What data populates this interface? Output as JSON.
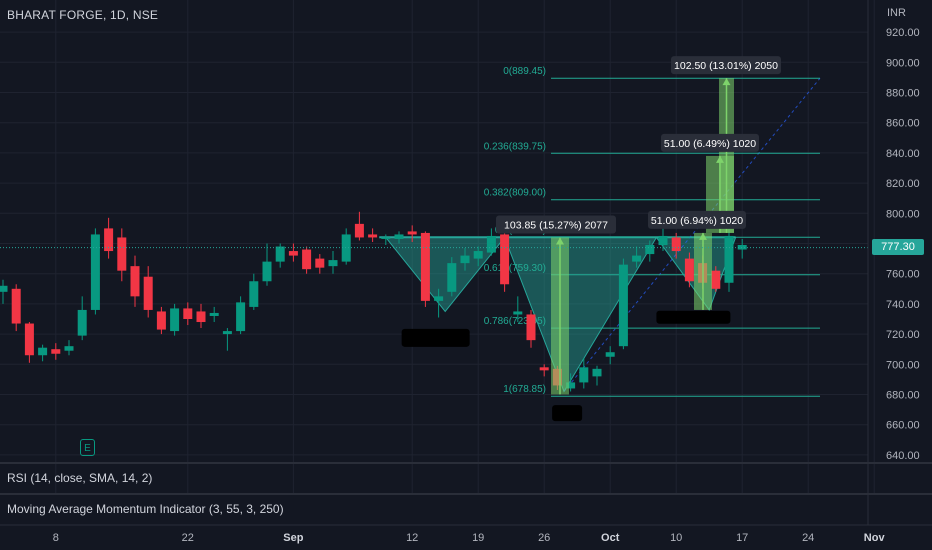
{
  "header": {
    "symbol": "BHARAT FORGE, 1D, NSE",
    "currency": "INR",
    "last_price": "777.30",
    "earnings_icon": "E"
  },
  "indicators": {
    "rsi": "RSI (14, close, SMA, 14, 2)",
    "mam": "Moving Average Momentum Indicator (3, 55, 3, 250)"
  },
  "colors": {
    "background": "#131722",
    "up": "#089981",
    "down": "#f23645",
    "fib": "#22ab94",
    "pattern_fill": "#26a69a",
    "projection": "#7ed36b",
    "label_bg": "#2a2e39"
  },
  "chart_data": {
    "type": "candlestick",
    "title": "BHARAT FORGE, 1D, NSE",
    "y_axis": {
      "unit": "INR",
      "ylim": [
        635,
        930
      ],
      "ticks": [
        "640.00",
        "660.00",
        "680.00",
        "700.00",
        "720.00",
        "740.00",
        "760.00",
        "780.00",
        "800.00",
        "820.00",
        "840.00",
        "860.00",
        "880.00",
        "900.00",
        "920.00"
      ]
    },
    "x_axis": {
      "ticks": [
        {
          "label": "8",
          "index": 4
        },
        {
          "label": "22",
          "index": 14
        },
        {
          "label": "Sep",
          "index": 22
        },
        {
          "label": "12",
          "index": 31
        },
        {
          "label": "19",
          "index": 36
        },
        {
          "label": "26",
          "index": 41
        },
        {
          "label": "Oct",
          "index": 46
        },
        {
          "label": "10",
          "index": 51
        },
        {
          "label": "17",
          "index": 56
        },
        {
          "label": "24",
          "index": 61
        },
        {
          "label": "Nov",
          "index": 66
        }
      ]
    },
    "candles": [
      {
        "o": 748,
        "h": 756,
        "l": 740,
        "c": 752
      },
      {
        "o": 750,
        "h": 753,
        "l": 722,
        "c": 727
      },
      {
        "o": 727,
        "h": 728,
        "l": 701,
        "c": 706
      },
      {
        "o": 706,
        "h": 713,
        "l": 702,
        "c": 711
      },
      {
        "o": 710,
        "h": 714,
        "l": 703,
        "c": 707
      },
      {
        "o": 709,
        "h": 716,
        "l": 706,
        "c": 712
      },
      {
        "o": 719,
        "h": 745,
        "l": 716,
        "c": 736
      },
      {
        "o": 736,
        "h": 790,
        "l": 733,
        "c": 786
      },
      {
        "o": 790,
        "h": 797,
        "l": 770,
        "c": 775
      },
      {
        "o": 784,
        "h": 790,
        "l": 755,
        "c": 762
      },
      {
        "o": 765,
        "h": 772,
        "l": 738,
        "c": 745
      },
      {
        "o": 758,
        "h": 765,
        "l": 731,
        "c": 736
      },
      {
        "o": 735,
        "h": 738,
        "l": 720,
        "c": 723
      },
      {
        "o": 722,
        "h": 740,
        "l": 719,
        "c": 737
      },
      {
        "o": 737,
        "h": 741,
        "l": 726,
        "c": 730
      },
      {
        "o": 735,
        "h": 740,
        "l": 724,
        "c": 728
      },
      {
        "o": 732,
        "h": 738,
        "l": 728,
        "c": 734
      },
      {
        "o": 720,
        "h": 724,
        "l": 709,
        "c": 722
      },
      {
        "o": 722,
        "h": 745,
        "l": 720,
        "c": 741
      },
      {
        "o": 738,
        "h": 760,
        "l": 736,
        "c": 755
      },
      {
        "o": 755,
        "h": 780,
        "l": 752,
        "c": 768
      },
      {
        "o": 768,
        "h": 780,
        "l": 764,
        "c": 778
      },
      {
        "o": 775,
        "h": 780,
        "l": 768,
        "c": 772
      },
      {
        "o": 776,
        "h": 778,
        "l": 760,
        "c": 763
      },
      {
        "o": 770,
        "h": 773,
        "l": 760,
        "c": 764
      },
      {
        "o": 765,
        "h": 775,
        "l": 760,
        "c": 769
      },
      {
        "o": 768,
        "h": 790,
        "l": 766,
        "c": 786
      },
      {
        "o": 793,
        "h": 801,
        "l": 782,
        "c": 784
      },
      {
        "o": 786,
        "h": 790,
        "l": 781,
        "c": 784
      },
      {
        "o": 783,
        "h": 786,
        "l": 779,
        "c": 784
      },
      {
        "o": 783,
        "h": 788,
        "l": 780,
        "c": 786
      },
      {
        "o": 788,
        "h": 792,
        "l": 781,
        "c": 786
      },
      {
        "o": 787,
        "h": 788,
        "l": 738,
        "c": 742
      },
      {
        "o": 742,
        "h": 750,
        "l": 731,
        "c": 745
      },
      {
        "o": 748,
        "h": 771,
        "l": 745,
        "c": 767
      },
      {
        "o": 767,
        "h": 777,
        "l": 762,
        "c": 772
      },
      {
        "o": 770,
        "h": 778,
        "l": 765,
        "c": 775
      },
      {
        "o": 774,
        "h": 790,
        "l": 772,
        "c": 785
      },
      {
        "o": 786,
        "h": 788,
        "l": 748,
        "c": 753
      },
      {
        "o": 733,
        "h": 745,
        "l": 728,
        "c": 735
      },
      {
        "o": 733,
        "h": 736,
        "l": 711,
        "c": 716
      },
      {
        "o": 698,
        "h": 700,
        "l": 692,
        "c": 696
      },
      {
        "o": 697,
        "h": 699,
        "l": 683,
        "c": 686
      },
      {
        "o": 684,
        "h": 694,
        "l": 682,
        "c": 688
      },
      {
        "o": 688,
        "h": 704,
        "l": 684,
        "c": 698
      },
      {
        "o": 692,
        "h": 699,
        "l": 686,
        "c": 697
      },
      {
        "o": 705,
        "h": 712,
        "l": 700,
        "c": 708
      },
      {
        "o": 712,
        "h": 770,
        "l": 710,
        "c": 766
      },
      {
        "o": 768,
        "h": 778,
        "l": 764,
        "c": 772
      },
      {
        "o": 773,
        "h": 782,
        "l": 768,
        "c": 779
      },
      {
        "o": 779,
        "h": 790,
        "l": 775,
        "c": 785
      },
      {
        "o": 784,
        "h": 787,
        "l": 770,
        "c": 775
      },
      {
        "o": 770,
        "h": 774,
        "l": 751,
        "c": 755
      },
      {
        "o": 767,
        "h": 772,
        "l": 750,
        "c": 754
      },
      {
        "o": 762,
        "h": 765,
        "l": 748,
        "c": 750
      },
      {
        "o": 754,
        "h": 800,
        "l": 748,
        "c": 785
      },
      {
        "o": 776,
        "h": 783,
        "l": 770,
        "c": 779
      }
    ],
    "fibonacci": [
      {
        "label": "0(889.45)",
        "value": 889.45
      },
      {
        "label": "0.236(839.75)",
        "value": 839.75
      },
      {
        "label": "0.382(809.00)",
        "value": 809.0
      },
      {
        "label": "0.5(784.15)",
        "value": 784.15
      },
      {
        "label": "0.618(759.30)",
        "value": 759.3
      },
      {
        "label": "0.786(723.95)",
        "value": 723.95
      },
      {
        "label": "1(678.85)",
        "value": 678.85
      }
    ],
    "measures": [
      {
        "label": "102.50 (13.01%) 2050",
        "bottom": 787,
        "top": 889.5
      },
      {
        "label": "51.00 (6.49%) 1020",
        "bottom": 787,
        "top": 838
      },
      {
        "label": "51.00 (6.94%) 1020",
        "bottom": 736,
        "top": 787
      },
      {
        "label": "103.85 (15.27%) 2077",
        "bottom": 680,
        "top": 784
      }
    ],
    "last_price": 777.3
  }
}
